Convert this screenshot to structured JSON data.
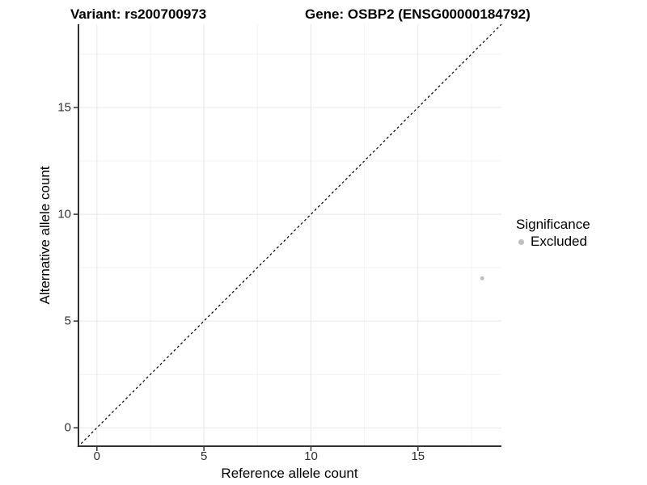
{
  "figure": {
    "title_variant": "Variant: rs200700973",
    "title_gene": "Gene: OSBP2 (ENSG00000184792)"
  },
  "chart_data": {
    "type": "scatter",
    "title": "Variant: rs200700973 — Gene: OSBP2 (ENSG00000184792)",
    "xlabel": "Reference allele count",
    "ylabel": "Alternative allele count",
    "xlim": [
      -0.9,
      18.9
    ],
    "ylim": [
      -0.9,
      18.9
    ],
    "x_ticks": [
      0,
      5,
      10,
      15
    ],
    "y_ticks": [
      0,
      5,
      10,
      15
    ],
    "minor_gridlines": [
      2.5,
      7.5,
      12.5,
      17.5
    ],
    "grid": "major+minor",
    "reference_line": {
      "kind": "identity",
      "equation": "y = x",
      "style": "dashed",
      "color": "#000000"
    },
    "series": [
      {
        "name": "Excluded",
        "color": "#bdbdbd",
        "points": [
          {
            "x": 18,
            "y": 7
          }
        ]
      }
    ],
    "legend": {
      "title": "Significance",
      "position": "right",
      "entries": [
        {
          "label": "Excluded",
          "color": "#bdbdbd",
          "marker": "circle"
        }
      ]
    }
  },
  "colors": {
    "background": "#ffffff",
    "axis_line": "#333333",
    "tick_mark": "#333333",
    "tick_label": "#303030",
    "grid_major": "#e8e8e8",
    "grid_minor": "#f3f3f3",
    "point": "#bdbdbd",
    "title_text": "#000000"
  }
}
